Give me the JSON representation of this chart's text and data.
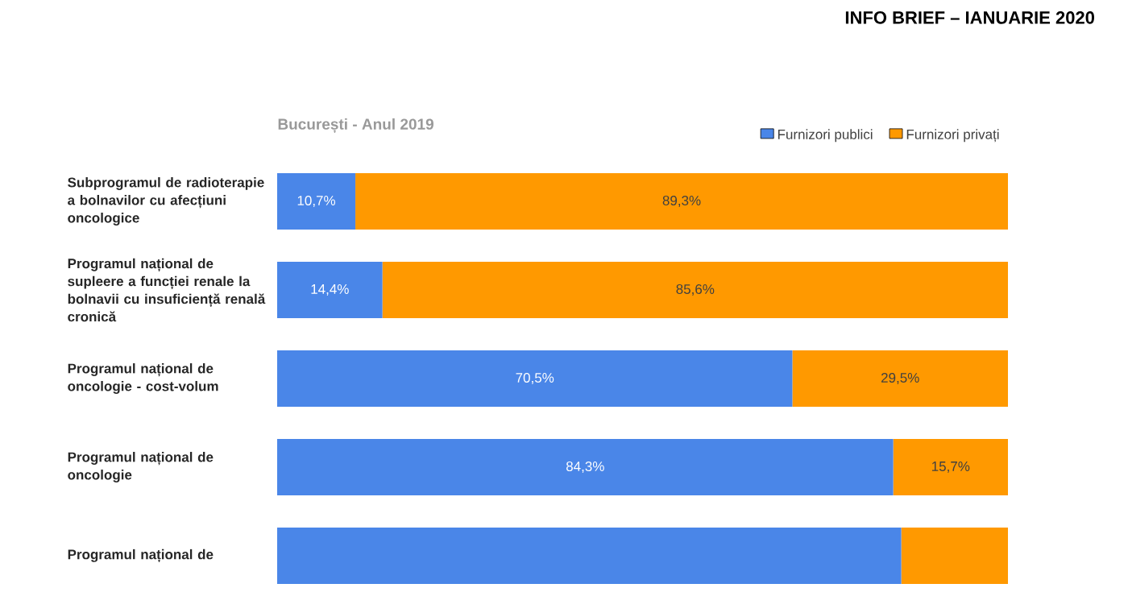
{
  "chart_data": {
    "type": "bar",
    "orientation": "horizontal",
    "stacked": true,
    "title": "București - Anul 2019",
    "annotations": [
      "INFO BRIEF – IANUARIE 2020"
    ],
    "categories": [
      "Subprogramul de radioterapie a bolnavilor cu afecțiuni oncologice",
      "Programul național de supleere a funcției renale la bolnavii cu insuficiență renală cronică",
      "Programul național de oncologie - cost-volum",
      "Programul național de oncologie",
      "Programul național de"
    ],
    "series": [
      {
        "name": "Furnizori publici",
        "color": "#4a86e8",
        "values": [
          10.7,
          14.4,
          70.5,
          84.3,
          85.4
        ],
        "value_labels": [
          "10,7%",
          "14,4%",
          "70,5%",
          "84,3%",
          null
        ]
      },
      {
        "name": "Furnizori privați",
        "color": "#ff9900",
        "values": [
          89.3,
          85.6,
          29.5,
          15.7,
          14.6
        ],
        "value_labels": [
          "89,3%",
          "85,6%",
          "29,5%",
          "15,7%",
          null
        ]
      }
    ],
    "legend": "top right"
  }
}
